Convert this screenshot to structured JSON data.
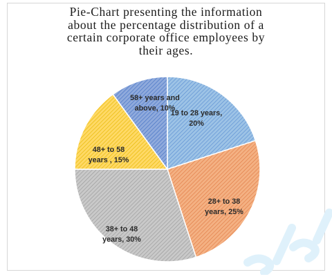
{
  "chart_data": {
    "type": "pie",
    "title_lines": [
      "Pie-Chart presenting the information",
      "about the percentage distribution of a",
      "certain corporate office employees by",
      "their ages."
    ],
    "slices": [
      {
        "label_lines": [
          "19 to 28 years,",
          "20%"
        ],
        "value": 20,
        "color": "#9dc3e6",
        "hatch": "#5b8fd2"
      },
      {
        "label_lines": [
          "28+ to 38",
          "years, 25%"
        ],
        "value": 25,
        "color": "#f4b183",
        "hatch": "#e07b45"
      },
      {
        "label_lines": [
          "38+ to 48",
          "years, 30%"
        ],
        "value": 30,
        "color": "#c9c9c9",
        "hatch": "#9a9a9a"
      },
      {
        "label_lines": [
          "48+ to 58",
          "years , 15%"
        ],
        "value": 15,
        "color": "#ffd966",
        "hatch": "#e6b800"
      },
      {
        "label_lines": [
          "58+ years and",
          "above, 10%"
        ],
        "value": 10,
        "color": "#8faadc",
        "hatch": "#4472c4"
      }
    ],
    "start_angle_deg": 0,
    "direction": "clockwise"
  }
}
